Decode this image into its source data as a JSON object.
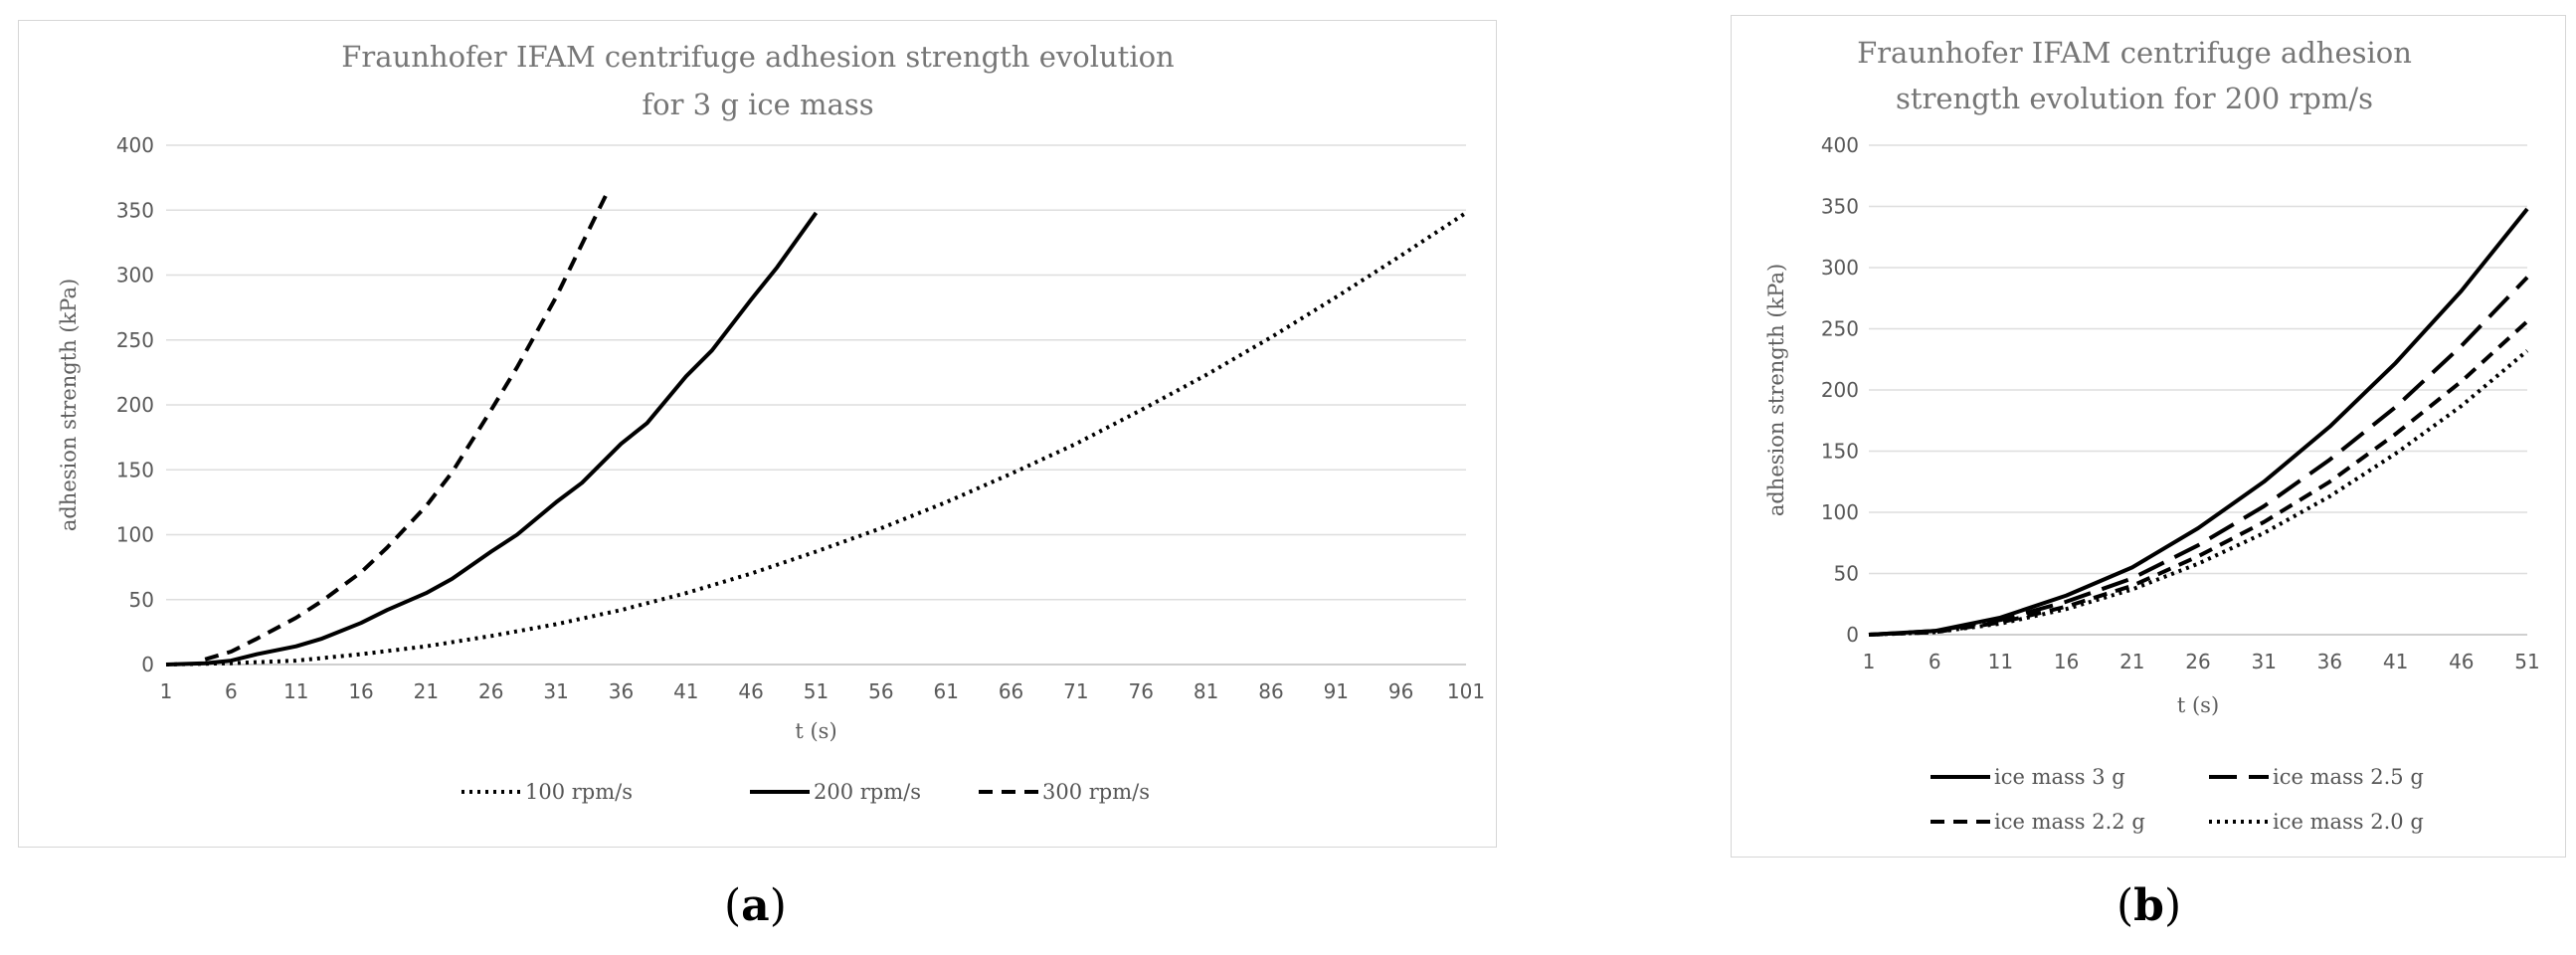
{
  "captions": [
    {
      "open": "(",
      "letter": "a",
      "close": ")"
    },
    {
      "open": "(",
      "letter": "b",
      "close": ")"
    }
  ],
  "chart_data": [
    {
      "id": "a",
      "type": "line",
      "title_lines": [
        "Fraunhofer IFAM centrifuge adhesion strength evolution",
        "for 3 g ice mass"
      ],
      "xlabel": "t (s)",
      "ylabel": "adhesion strength (kPa)",
      "xlim": [
        1,
        101
      ],
      "ylim": [
        0,
        400
      ],
      "x_ticks": [
        1,
        6,
        11,
        16,
        21,
        26,
        31,
        36,
        41,
        46,
        51,
        56,
        61,
        66,
        71,
        76,
        81,
        86,
        91,
        96,
        101
      ],
      "y_ticks": [
        0,
        50,
        100,
        150,
        200,
        250,
        300,
        350,
        400
      ],
      "grid": "horizontal",
      "legend": "bottom",
      "legend_layout": [
        [
          "100 rpm/s",
          "200 rpm/s",
          "300 rpm/s"
        ]
      ],
      "series": [
        {
          "name": "100 rpm/s",
          "style": "dotted",
          "x": [
            1,
            6,
            11,
            16,
            21,
            26,
            31,
            36,
            41,
            46,
            51,
            56,
            61,
            66,
            71,
            76,
            81,
            86,
            91,
            96,
            101
          ],
          "y": [
            0,
            1,
            3,
            8,
            14,
            22,
            31,
            42,
            55,
            70,
            87,
            105,
            125,
            147,
            170,
            196,
            223,
            252,
            283,
            315,
            348
          ]
        },
        {
          "name": "200 rpm/s",
          "style": "solid",
          "x": [
            1,
            4,
            6,
            8,
            11,
            13,
            16,
            18,
            21,
            23,
            26,
            28,
            31,
            33,
            36,
            38,
            41,
            43,
            46,
            48,
            51
          ],
          "y": [
            0,
            1,
            3,
            8,
            14,
            20,
            32,
            42,
            55,
            66,
            87,
            100,
            125,
            140,
            170,
            186,
            222,
            242,
            281,
            306,
            348
          ]
        },
        {
          "name": "300 rpm/s",
          "style": "dashed",
          "x": [
            4,
            6,
            8,
            11,
            13,
            16,
            18,
            21,
            23,
            26,
            28,
            31,
            33,
            35
          ],
          "y": [
            4,
            10,
            20,
            36,
            49,
            71,
            90,
            122,
            148,
            196,
            229,
            283,
            324,
            365
          ]
        }
      ]
    },
    {
      "id": "b",
      "type": "line",
      "title_lines": [
        "Fraunhofer IFAM centrifuge adhesion",
        "strength evolution for 200 rpm/s"
      ],
      "xlabel": "t (s)",
      "ylabel": "adhesion strength (kPa)",
      "xlim": [
        1,
        51
      ],
      "ylim": [
        0,
        400
      ],
      "x_ticks": [
        1,
        6,
        11,
        16,
        21,
        26,
        31,
        36,
        41,
        46,
        51
      ],
      "y_ticks": [
        0,
        50,
        100,
        150,
        200,
        250,
        300,
        350,
        400
      ],
      "grid": "horizontal",
      "legend": "bottom",
      "legend_layout": [
        [
          "ice mass 3 g",
          "ice mass 2.5 g"
        ],
        [
          "ice mass 2.2 g",
          "ice mass 2.0 g"
        ]
      ],
      "series": [
        {
          "name": "ice mass 3 g",
          "style": "solid",
          "x": [
            1,
            6,
            11,
            16,
            21,
            26,
            31,
            36,
            41,
            46,
            51
          ],
          "y": [
            0,
            3,
            14,
            32,
            55,
            87,
            125,
            170,
            222,
            281,
            348
          ]
        },
        {
          "name": "ice mass 2.5 g",
          "style": "longdash",
          "x": [
            1,
            6,
            11,
            16,
            21,
            26,
            31,
            36,
            41,
            46,
            51
          ],
          "y": [
            0,
            3,
            12,
            27,
            46,
            73,
            105,
            143,
            186,
            236,
            292
          ]
        },
        {
          "name": "ice mass 2.2 g",
          "style": "dashed",
          "x": [
            1,
            6,
            11,
            16,
            21,
            26,
            31,
            36,
            41,
            46,
            51
          ],
          "y": [
            0,
            2,
            10,
            23,
            40,
            64,
            92,
            125,
            164,
            207,
            256
          ]
        },
        {
          "name": "ice mass 2.0 g",
          "style": "dotted",
          "x": [
            1,
            6,
            11,
            16,
            21,
            26,
            31,
            36,
            41,
            46,
            51
          ],
          "y": [
            0,
            2,
            9,
            21,
            37,
            58,
            83,
            113,
            148,
            187,
            232
          ]
        }
      ]
    }
  ]
}
